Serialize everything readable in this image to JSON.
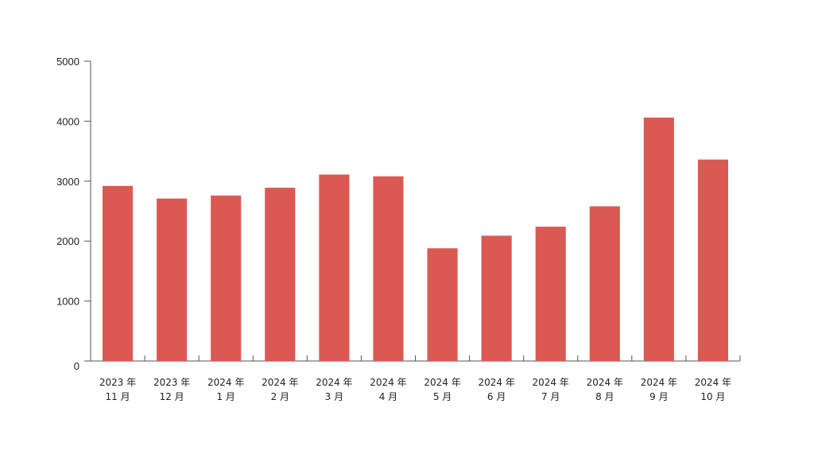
{
  "chart_data": {
    "type": "bar",
    "title": "",
    "xlabel": "",
    "ylabel": "",
    "categories": [
      [
        "2023 年",
        "11 月"
      ],
      [
        "2023 年",
        "12 月"
      ],
      [
        "2024 年",
        "1 月"
      ],
      [
        "2024 年",
        "2 月"
      ],
      [
        "2024 年",
        "3 月"
      ],
      [
        "2024 年",
        "4 月"
      ],
      [
        "2024 年",
        "5 月"
      ],
      [
        "2024 年",
        "6 月"
      ],
      [
        "2024 年",
        "7 月"
      ],
      [
        "2024 年",
        "8 月"
      ],
      [
        "2024 年",
        "9 月"
      ],
      [
        "2024 年",
        "10 月"
      ]
    ],
    "values": [
      2920,
      2710,
      2760,
      2890,
      3110,
      3080,
      1880,
      2090,
      2240,
      2580,
      4060,
      3360
    ],
    "ylim": [
      0,
      5000
    ],
    "yticks": [
      0,
      1000,
      2000,
      3000,
      4000,
      5000
    ],
    "grid": false,
    "legend": "none",
    "bar_color": "#dc5953",
    "axis_color": "#555555"
  }
}
